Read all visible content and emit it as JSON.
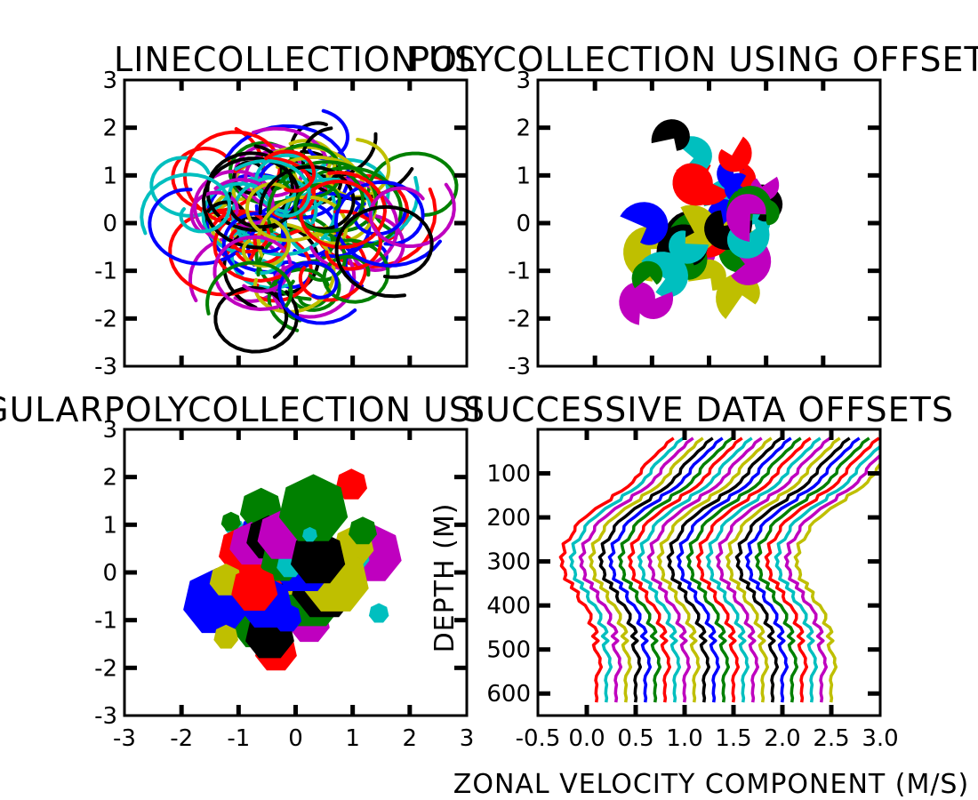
{
  "colors": [
    "#0000ff",
    "#008000",
    "#ff0000",
    "#00bfbf",
    "#bf00bf",
    "#bfbf00",
    "#000000"
  ],
  "chart_data": [
    {
      "id": "line_collection",
      "type": "line",
      "title": "LINECOLLECTION US",
      "xlim": [
        -3,
        3
      ],
      "ylim": [
        -3,
        3
      ],
      "yticks": [
        -3,
        -2,
        -1,
        0,
        1,
        2,
        3
      ],
      "xticks": [
        -2,
        -1,
        0,
        1,
        2
      ],
      "series_count": 80,
      "description": "many random spirals"
    },
    {
      "id": "poly_collection",
      "type": "scatter",
      "title": "POLYCOLLECTION USING OFFSETS",
      "xlim": [
        -3,
        3
      ],
      "ylim": [
        -3,
        3
      ],
      "yticks": [
        -3,
        -2,
        -1,
        0,
        1,
        2,
        3
      ],
      "xticks": [
        -2,
        -1,
        0,
        1,
        2
      ],
      "marker": "curled wedge",
      "count": 40
    },
    {
      "id": "regular_poly_collection",
      "type": "scatter",
      "title": "REGULARPOLYCOLLECTION USI",
      "xlim": [
        -3,
        3
      ],
      "ylim": [
        -3,
        3
      ],
      "xticks": [
        -3,
        -2,
        -1,
        0,
        1,
        2,
        3
      ],
      "yticks": [
        -3,
        -2,
        -1,
        0,
        1,
        2,
        3
      ],
      "marker": "heptagon",
      "count": 60
    },
    {
      "id": "successive_offsets",
      "type": "line",
      "title": "SUCCESSIVE DATA OFFSETS",
      "xlabel": "ZONAL VELOCITY COMPONENT (M/S)",
      "ylabel": "DEPTH (M)",
      "xlim": [
        -0.5,
        3.0
      ],
      "ylim": [
        0,
        650
      ],
      "y_inverted": true,
      "xticks": [
        -0.5,
        0.0,
        0.5,
        1.0,
        1.5,
        2.0,
        2.5,
        3.0
      ],
      "xtick_labels": [
        "-0.5",
        "0.0",
        "0.5",
        "1.0",
        "1.5",
        "2.0",
        "2.5",
        "3.0"
      ],
      "yticks": [
        100,
        200,
        300,
        400,
        500,
        600
      ],
      "series_count": 25,
      "x_offset_step": 0.1,
      "base_profile": {
        "depth": [
          20,
          60,
          100,
          140,
          180,
          220,
          260,
          300,
          340,
          380,
          420,
          460,
          500,
          540,
          580,
          620
        ],
        "value": [
          0.9,
          0.7,
          0.55,
          0.35,
          0.1,
          -0.1,
          -0.22,
          -0.27,
          -0.2,
          -0.08,
          0.02,
          0.08,
          0.1,
          0.12,
          0.12,
          0.12
        ]
      }
    }
  ]
}
